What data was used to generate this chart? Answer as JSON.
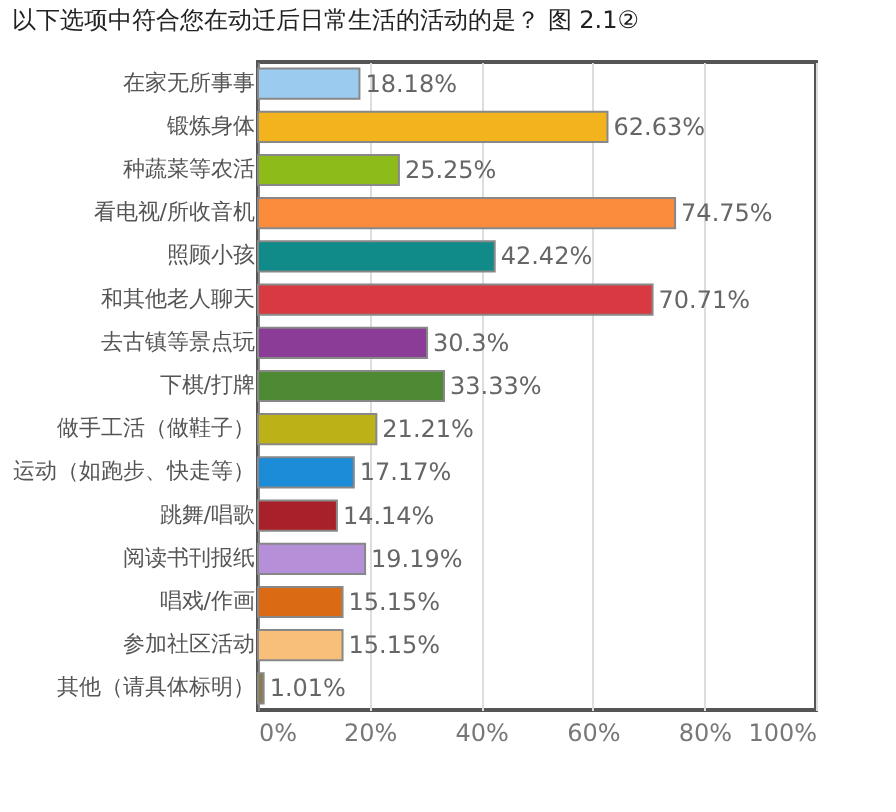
{
  "chart_data": {
    "type": "bar",
    "orientation": "horizontal",
    "title": "以下选项中符合您在动迁后日常生活的活动的是？ 图 2.1②",
    "categories": [
      "在家无所事事",
      "锻炼身体",
      "种蔬菜等农活",
      "看电视/所收音机",
      "照顾小孩",
      "和其他老人聊天",
      "去古镇等景点玩",
      "下棋/打牌",
      "做手工活（做鞋子）",
      "运动（如跑步、快走等）",
      "跳舞/唱歌",
      "阅读书刊报纸",
      "唱戏/作画",
      "参加社区活动",
      "其他（请具体标明）"
    ],
    "values": [
      18.18,
      62.63,
      25.25,
      74.75,
      42.42,
      70.71,
      30.3,
      33.33,
      21.21,
      17.17,
      14.14,
      19.19,
      15.15,
      15.15,
      1.01
    ],
    "value_labels": [
      "18.18%",
      "62.63%",
      "25.25%",
      "74.75%",
      "42.42%",
      "70.71%",
      "30.3%",
      "33.33%",
      "21.21%",
      "17.17%",
      "14.14%",
      "19.19%",
      "15.15%",
      "15.15%",
      "1.01%"
    ],
    "colors": [
      "#9ccbf0",
      "#f2b31c",
      "#8dbb1a",
      "#fb8c3c",
      "#118a8a",
      "#d93a41",
      "#8a3c96",
      "#4d8a33",
      "#bcb217",
      "#1d8cd8",
      "#a8202a",
      "#b58fd8",
      "#db6a14",
      "#f8bf7a",
      "#8a7d50"
    ],
    "xlim": [
      0,
      100
    ],
    "xticks": [
      {
        "value": 0,
        "label": "0%"
      },
      {
        "value": 20,
        "label": "20%"
      },
      {
        "value": 40,
        "label": "40%"
      },
      {
        "value": 60,
        "label": "60%"
      },
      {
        "value": 80,
        "label": "80%"
      },
      {
        "value": 100,
        "label": "100%"
      }
    ],
    "grid": "x",
    "legend": false
  }
}
